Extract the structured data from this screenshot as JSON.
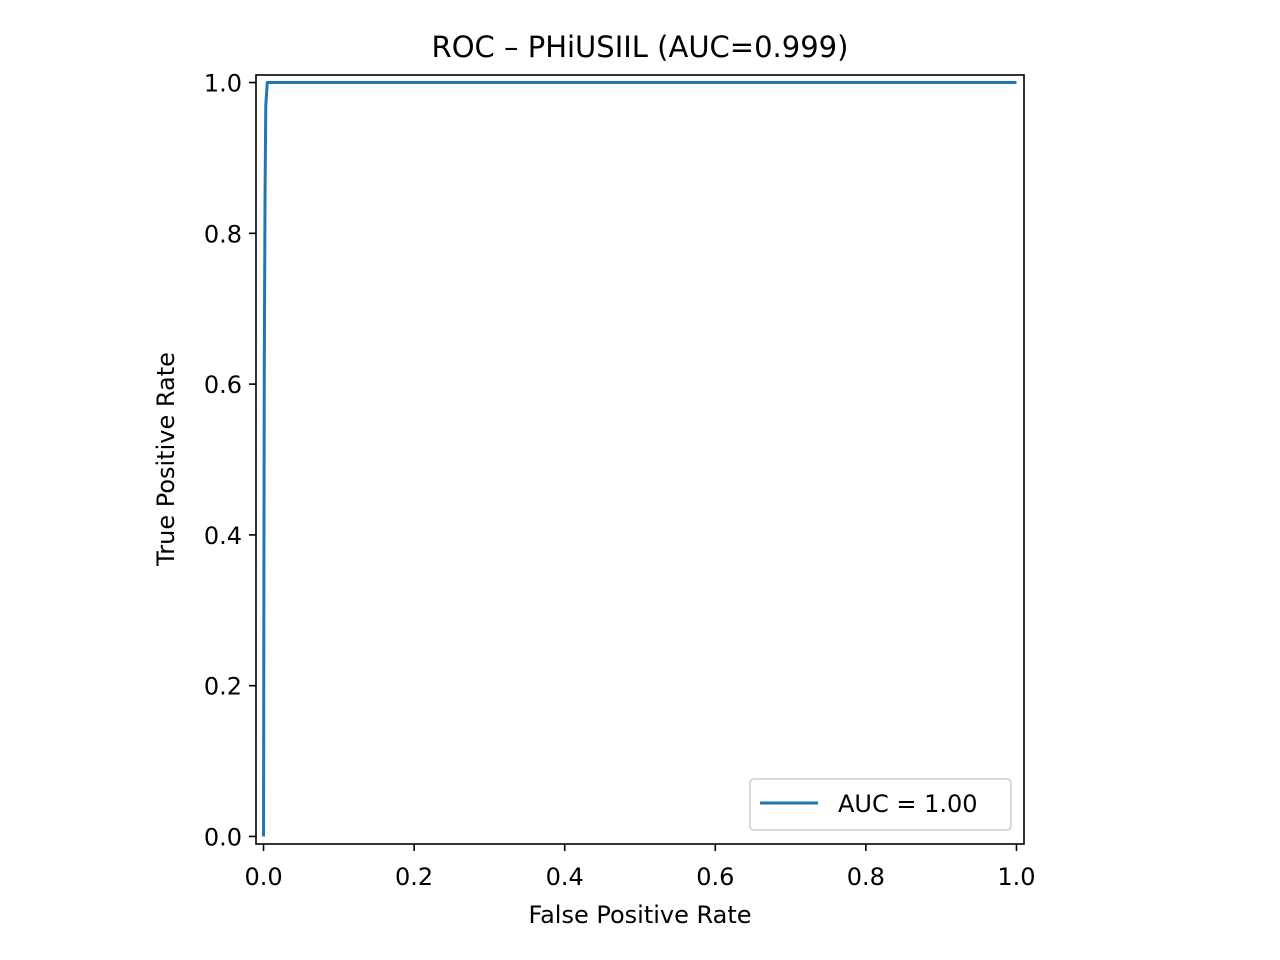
{
  "chart_data": {
    "type": "line",
    "title": "ROC – PHiUSIIL (AUC=0.999)",
    "xlabel": "False Positive Rate",
    "ylabel": "True Positive Rate",
    "xlim": [
      -0.01,
      1.01
    ],
    "ylim": [
      -0.01,
      1.01
    ],
    "xticks": [
      0.0,
      0.2,
      0.4,
      0.6,
      0.8,
      1.0
    ],
    "xtick_labels": [
      "0.0",
      "0.2",
      "0.4",
      "0.6",
      "0.8",
      "1.0"
    ],
    "yticks": [
      0.0,
      0.2,
      0.4,
      0.6,
      0.8,
      1.0
    ],
    "ytick_labels": [
      "0.0",
      "0.2",
      "0.4",
      "0.6",
      "0.8",
      "1.0"
    ],
    "grid": false,
    "legend_position": "lower-right",
    "series": [
      {
        "name": "AUC = 1.00",
        "color": "#1f77b4",
        "x": [
          0.0,
          0.0005,
          0.001,
          0.002,
          0.003,
          0.005,
          0.2,
          0.4,
          0.6,
          0.8,
          1.0
        ],
        "y": [
          0.0,
          0.35,
          0.62,
          0.85,
          0.97,
          1.0,
          1.0,
          1.0,
          1.0,
          1.0,
          1.0
        ]
      }
    ]
  }
}
